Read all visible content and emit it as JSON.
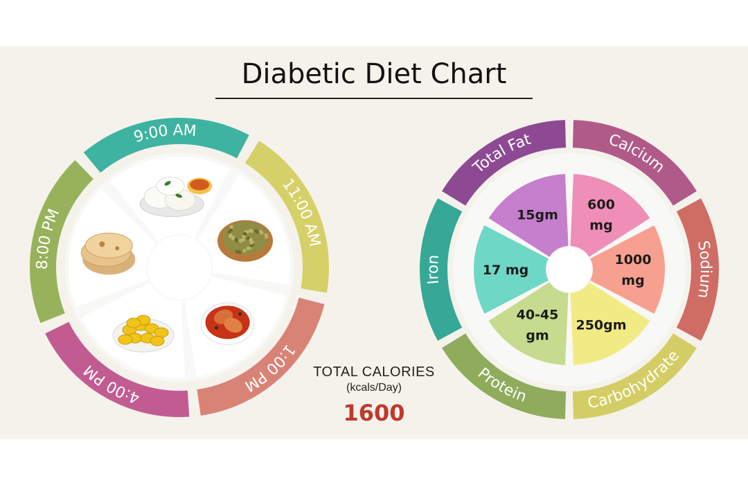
{
  "title": "Diabetic Diet Chart",
  "meal_schedule": {
    "times": [
      {
        "label": "9:00 AM",
        "band_color": "#3fb3a1",
        "food": "idli-sambar"
      },
      {
        "label": "11:00 AM",
        "band_color": "#d6d068",
        "food": "sprouts"
      },
      {
        "label": "1:00 PM",
        "band_color": "#d98376",
        "food": "fish-curry"
      },
      {
        "label": "4:00 PM",
        "band_color": "#c35b93",
        "food": "jackfruit"
      },
      {
        "label": "8:00 PM",
        "band_color": "#97b25a",
        "food": "chapati"
      }
    ]
  },
  "calories": {
    "label": "TOTAL CALORIES",
    "unit": "(kcals/Day)",
    "value": "1600"
  },
  "nutrients": [
    {
      "name": "Total Fat",
      "value_lines": [
        "15gm"
      ],
      "band_color": "#8d4a93",
      "fill_color": "#c57fcd"
    },
    {
      "name": "Calcium",
      "value_lines": [
        "600",
        "mg"
      ],
      "band_color": "#b05a8a",
      "fill_color": "#ef8fb8"
    },
    {
      "name": "Sodium",
      "value_lines": [
        "1000",
        "mg"
      ],
      "band_color": "#cf6d64",
      "fill_color": "#f8a08f"
    },
    {
      "name": "Carbohydrate",
      "value_lines": [
        "250gm"
      ],
      "band_color": "#d4cd66",
      "fill_color": "#f2eb85"
    },
    {
      "name": "Protein",
      "value_lines": [
        "40-45",
        "gm"
      ],
      "band_color": "#8fac5d",
      "fill_color": "#c6db8d"
    },
    {
      "name": "Iron",
      "value_lines": [
        "17 mg"
      ],
      "band_color": "#36a897",
      "fill_color": "#6fd7c5"
    }
  ]
}
